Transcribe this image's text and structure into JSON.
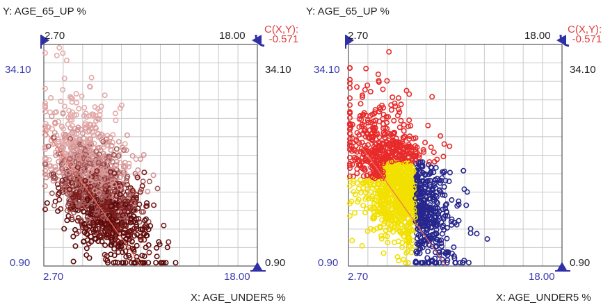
{
  "colors": {
    "axis_blue": "#2f2fa8",
    "corr_red": "#e03a3a",
    "grid": "#c8c8c8",
    "frame": "#333333",
    "regression_line": "#f07060"
  },
  "panels": [
    {
      "y_axis_title": "Y: AGE_65_UP %",
      "x_axis_title": "X: AGE_UNDER5 %",
      "x_min_label": "2.70",
      "x_max_label": "18.00",
      "y_max_label": "34.10",
      "y_min_label": "0.90",
      "y_max_label_right": "34.10",
      "y_min_label_right": "0.90",
      "corr_label": "C(X,Y):",
      "corr_value": "-0.571",
      "coloring": "depth",
      "icons": [
        "x-min-slider-icon",
        "x-max-slider-icon",
        "y-max-slider-icon",
        "y-min-slider-icon"
      ]
    },
    {
      "y_axis_title": "Y: AGE_65_UP %",
      "x_axis_title": "X: AGE_UNDER5 %",
      "x_min_label": "2.70",
      "x_max_label": "18.00",
      "y_max_label": "34.10",
      "y_min_label": "0.90",
      "y_max_label_right": "34.10",
      "y_min_label_right": "0.90",
      "corr_label": "C(X,Y):",
      "corr_value": "-0.571",
      "coloring": "cluster",
      "cluster_colors": [
        "#e82a2a",
        "#f2e000",
        "#26268c"
      ],
      "icons": [
        "x-min-slider-icon",
        "x-max-slider-icon",
        "y-max-slider-icon",
        "y-min-slider-icon"
      ]
    }
  ],
  "chart_data": [
    {
      "type": "scatter",
      "title": "",
      "xlabel": "X: AGE_UNDER5 %",
      "ylabel": "Y: AGE_65_UP %",
      "xlim": [
        2.7,
        18.0
      ],
      "ylim": [
        0.9,
        34.1
      ],
      "correlation": -0.571,
      "grid": true,
      "regression_line": true,
      "series": [
        {
          "values": "dense point cloud, approx. 2500 counties; centered near x=6.5, y=12"
        }
      ]
    },
    {
      "type": "scatter",
      "title": "",
      "xlabel": "X: AGE_UNDER5 %",
      "ylabel": "Y: AGE_65_UP %",
      "xlim": [
        2.7,
        18.0
      ],
      "ylim": [
        0.9,
        34.1
      ],
      "correlation": -0.571,
      "grid": true,
      "regression_line": true,
      "series": [
        {
          "values": "red cluster: high AGE_65_UP (y above ~16)"
        },
        {
          "values": "yellow cluster: low AGE_UNDER5 and low AGE_65_UP"
        },
        {
          "values": "blue cluster: high AGE_UNDER5 (x above ~7.5)"
        }
      ]
    }
  ]
}
